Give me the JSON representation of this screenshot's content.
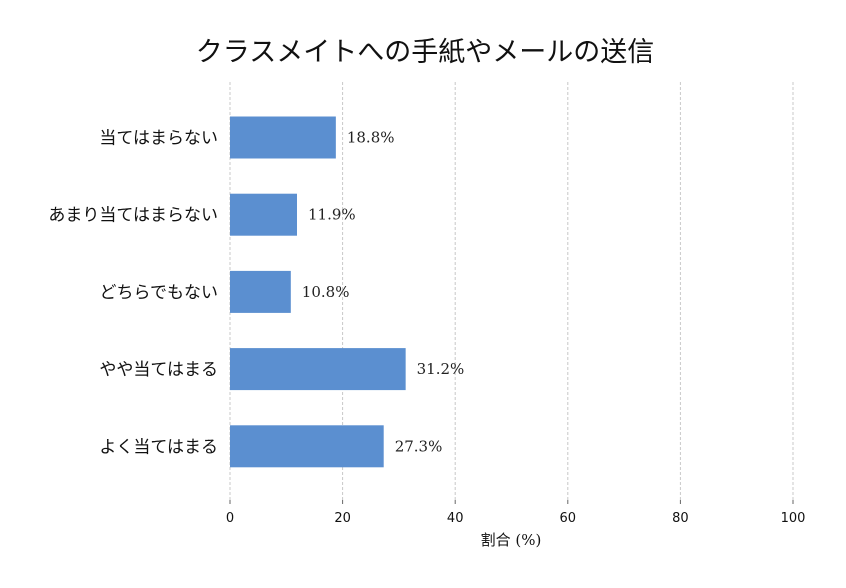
{
  "chart_data": {
    "type": "bar",
    "orientation": "horizontal",
    "title": "クラスメイトへの手紙やメールの送信",
    "xlabel": "割合 (%)",
    "ylabel": "",
    "xlim": [
      0,
      100
    ],
    "xticks": [
      0,
      20,
      40,
      60,
      80,
      100
    ],
    "grid": "vertical dashed",
    "categories": [
      "当てはまらない",
      "あまり当てはまらない",
      "どちらでもない",
      "やや当てはまる",
      "よく当てはまる"
    ],
    "values": [
      18.8,
      11.9,
      10.8,
      31.2,
      27.3
    ],
    "value_labels": [
      "18.8%",
      "11.9%",
      "10.8%",
      "31.2%",
      "27.3%"
    ],
    "bar_color": "#5b8fd0"
  }
}
